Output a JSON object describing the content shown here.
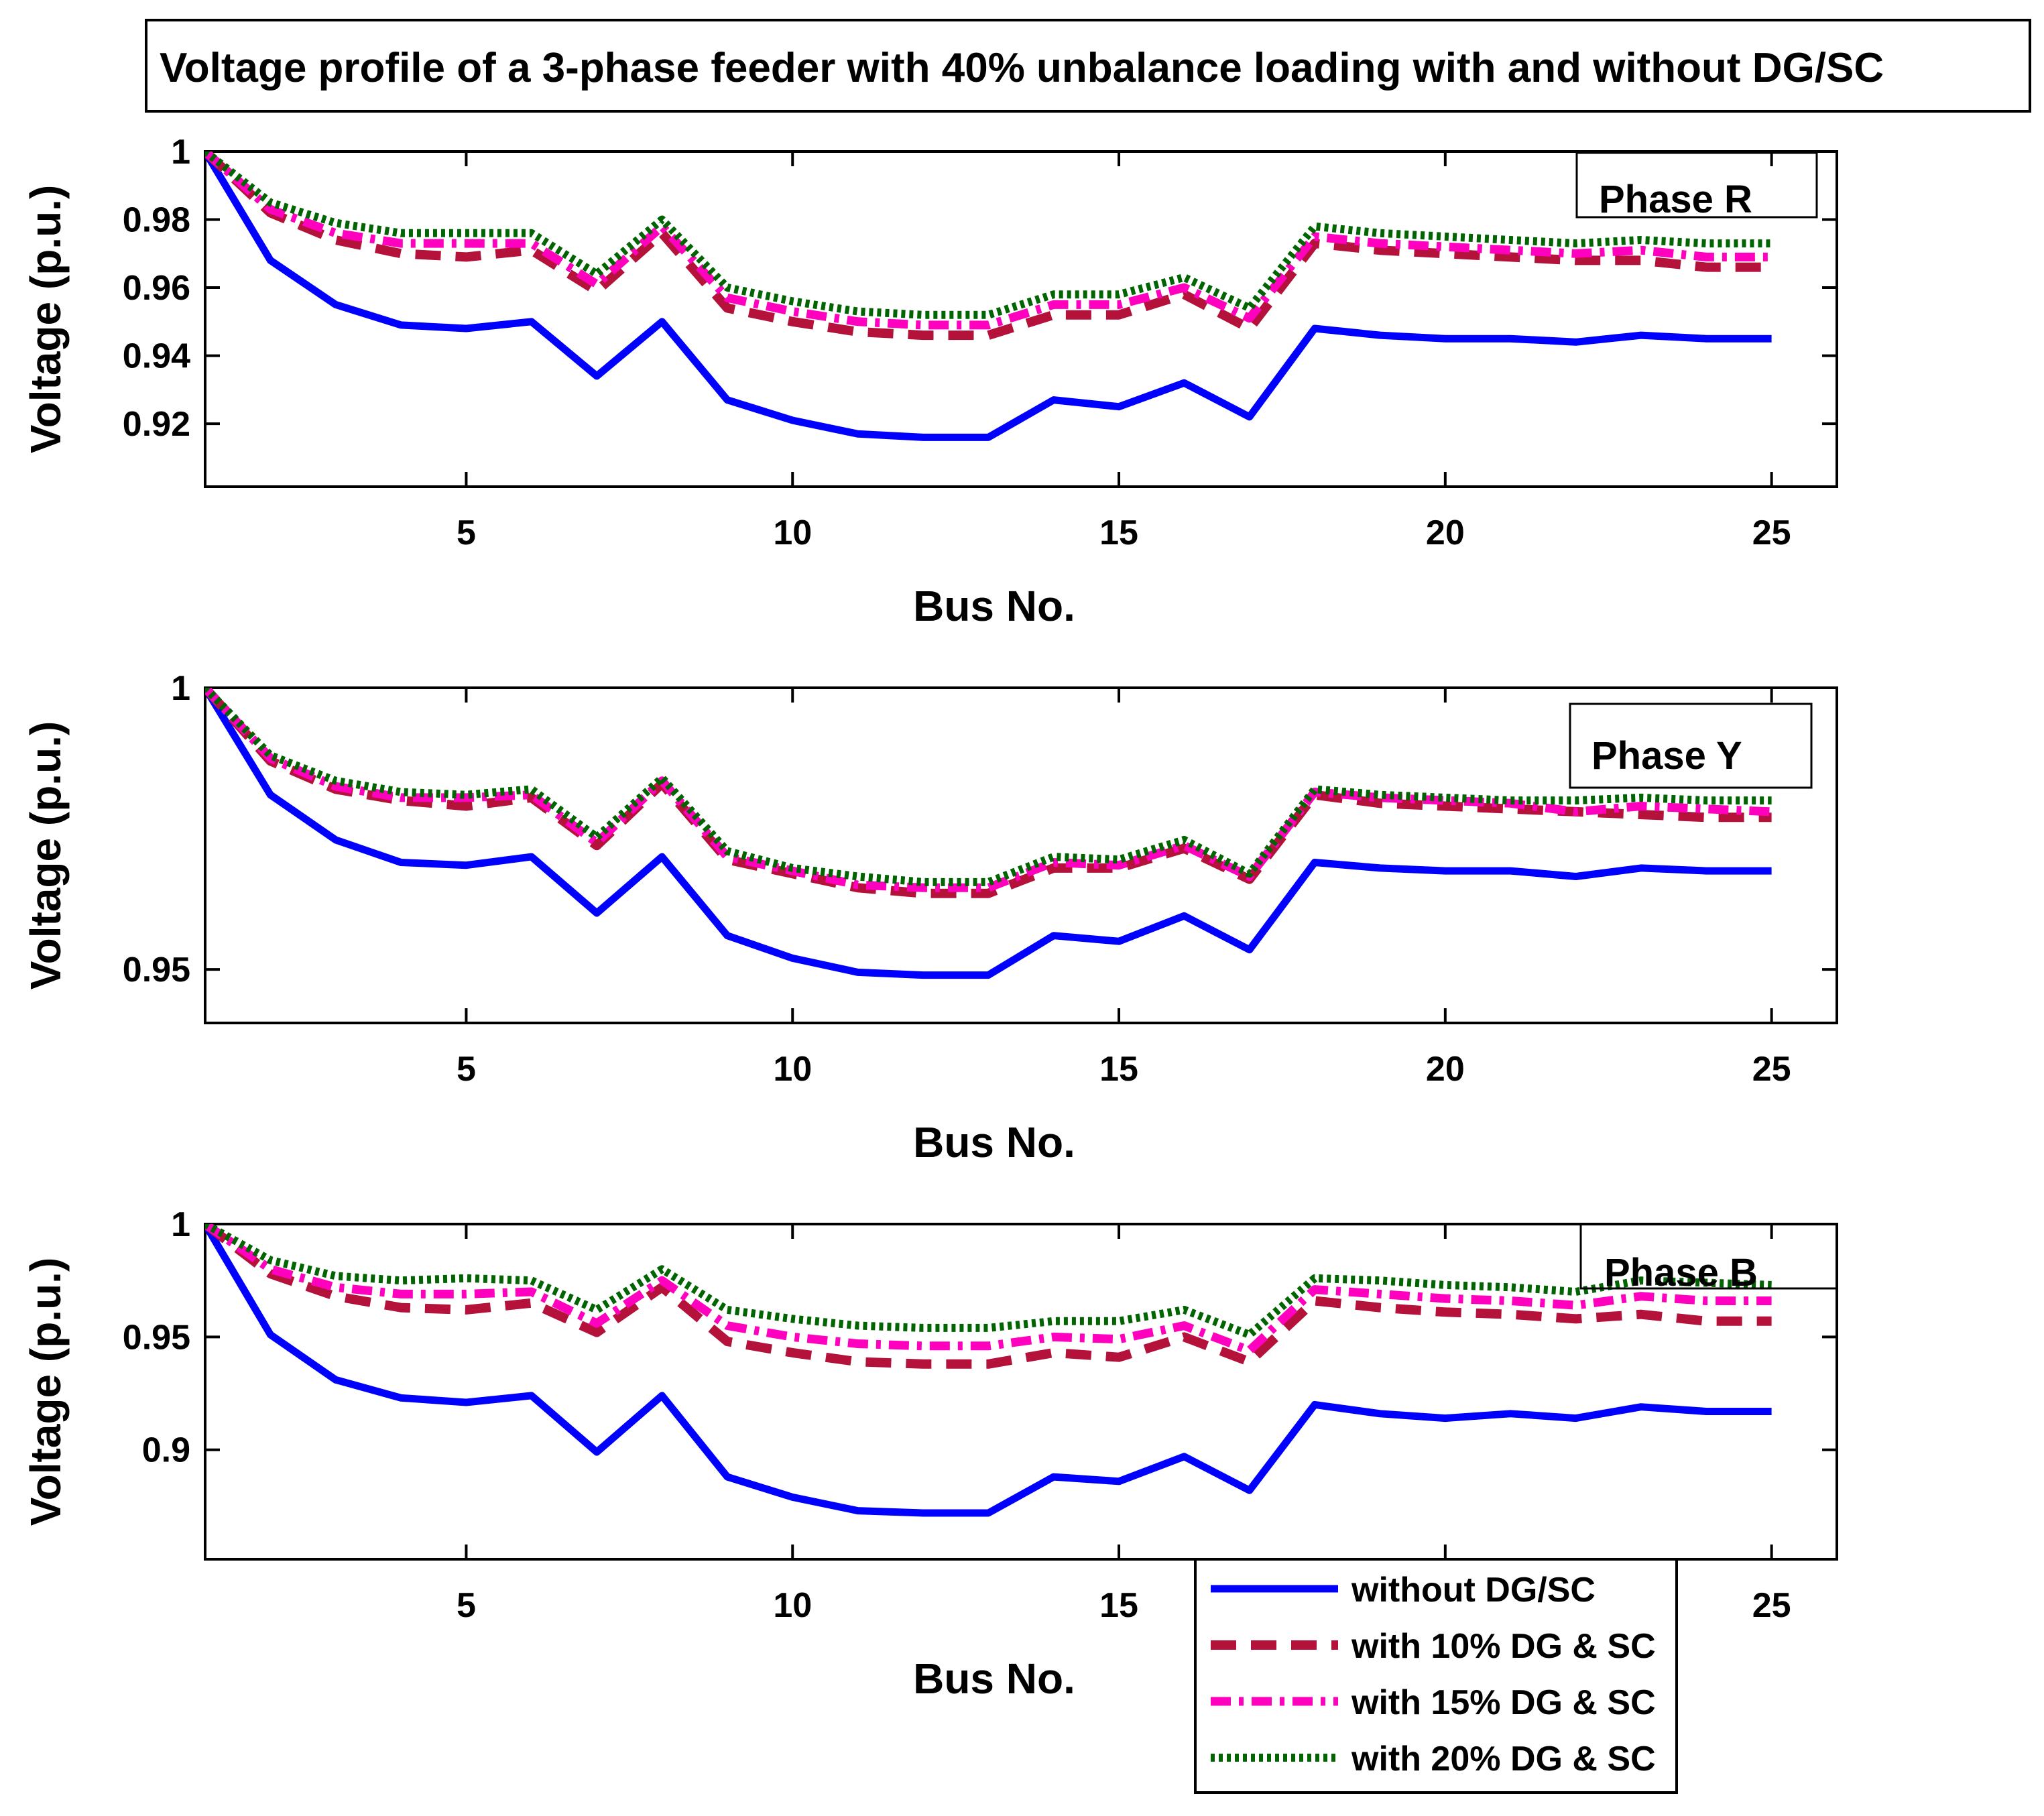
{
  "figure_title": "Voltage profile of a 3-phase feeder with 40% unbalance loading with and without DG/SC",
  "colors": {
    "without": "#0000ff",
    "dg10": "#b5123b",
    "dg15": "#ff00bf",
    "dg20": "#006400"
  },
  "chart_data": [
    {
      "type": "line",
      "title": "Phase R",
      "xlabel": "Bus No.",
      "ylabel": "Voltage (p.u.)",
      "xlim": [
        1,
        26
      ],
      "ylim": [
        0.9015,
        1.0
      ],
      "xticks": [
        5,
        10,
        15,
        20,
        25
      ],
      "yticks": [
        0.92,
        0.94,
        0.96,
        0.98,
        1
      ],
      "ytick_labels": [
        "0.92",
        "0.94",
        "0.96",
        "0.98",
        "1"
      ],
      "x": [
        1,
        2,
        3,
        4,
        5,
        6,
        7,
        8,
        9,
        10,
        11,
        12,
        13,
        14,
        15,
        16,
        17,
        18,
        19,
        20,
        21,
        22,
        23,
        24,
        25
      ],
      "series": [
        {
          "name": "without DG/SC",
          "style": "solid",
          "color_key": "without",
          "values": [
            1.0,
            0.968,
            0.955,
            0.949,
            0.948,
            0.95,
            0.934,
            0.95,
            0.927,
            0.921,
            0.917,
            0.916,
            0.916,
            0.927,
            0.925,
            0.932,
            0.922,
            0.948,
            0.946,
            0.945,
            0.945,
            0.944,
            0.946,
            0.945,
            0.945
          ]
        },
        {
          "name": "with 10% DG & SC",
          "style": "dashed",
          "color_key": "dg10",
          "values": [
            1.0,
            0.982,
            0.974,
            0.97,
            0.969,
            0.971,
            0.959,
            0.976,
            0.954,
            0.95,
            0.947,
            0.946,
            0.946,
            0.952,
            0.952,
            0.958,
            0.948,
            0.973,
            0.971,
            0.97,
            0.969,
            0.968,
            0.968,
            0.966,
            0.966
          ]
        },
        {
          "name": "with 15% DG & SC",
          "style": "dashdot",
          "color_key": "dg15",
          "values": [
            1.0,
            0.983,
            0.976,
            0.973,
            0.973,
            0.973,
            0.961,
            0.978,
            0.957,
            0.953,
            0.95,
            0.949,
            0.949,
            0.955,
            0.955,
            0.96,
            0.951,
            0.975,
            0.973,
            0.972,
            0.971,
            0.97,
            0.971,
            0.969,
            0.969
          ]
        },
        {
          "name": "with 20% DG & SC",
          "style": "dotted",
          "color_key": "dg20",
          "values": [
            1.0,
            0.985,
            0.979,
            0.976,
            0.976,
            0.976,
            0.964,
            0.98,
            0.96,
            0.956,
            0.953,
            0.952,
            0.952,
            0.958,
            0.958,
            0.963,
            0.954,
            0.978,
            0.976,
            0.975,
            0.974,
            0.973,
            0.974,
            0.973,
            0.973
          ]
        }
      ]
    },
    {
      "type": "line",
      "title": "Phase Y",
      "xlabel": "Bus No.",
      "ylabel": "Voltage (p.u.)",
      "xlim": [
        1,
        26
      ],
      "ylim": [
        0.9405,
        1.0
      ],
      "xticks": [
        5,
        10,
        15,
        20,
        25
      ],
      "yticks": [
        0.95,
        1
      ],
      "ytick_labels": [
        "0.95",
        "1"
      ],
      "x": [
        1,
        2,
        3,
        4,
        5,
        6,
        7,
        8,
        9,
        10,
        11,
        12,
        13,
        14,
        15,
        16,
        17,
        18,
        19,
        20,
        21,
        22,
        23,
        24,
        25
      ],
      "series": [
        {
          "name": "without DG/SC",
          "style": "solid",
          "color_key": "without",
          "values": [
            1.0,
            0.981,
            0.973,
            0.969,
            0.9685,
            0.97,
            0.96,
            0.97,
            0.956,
            0.952,
            0.9495,
            0.949,
            0.949,
            0.956,
            0.955,
            0.9595,
            0.9535,
            0.969,
            0.968,
            0.9675,
            0.9675,
            0.9665,
            0.968,
            0.9675,
            0.9675
          ]
        },
        {
          "name": "with 10% DG & SC",
          "style": "dashed",
          "color_key": "dg10",
          "values": [
            1.0,
            0.987,
            0.982,
            0.98,
            0.979,
            0.9805,
            0.972,
            0.983,
            0.9695,
            0.967,
            0.9645,
            0.9635,
            0.9635,
            0.968,
            0.968,
            0.9715,
            0.966,
            0.981,
            0.9795,
            0.979,
            0.9785,
            0.978,
            0.9775,
            0.977,
            0.977
          ]
        },
        {
          "name": "with 15% DG & SC",
          "style": "dashdot",
          "color_key": "dg15",
          "values": [
            1.0,
            0.9875,
            0.9825,
            0.9805,
            0.9805,
            0.981,
            0.9725,
            0.9835,
            0.97,
            0.9675,
            0.965,
            0.9645,
            0.9645,
            0.969,
            0.9685,
            0.972,
            0.9665,
            0.9815,
            0.9805,
            0.98,
            0.9795,
            0.978,
            0.979,
            0.9785,
            0.978
          ]
        },
        {
          "name": "with 20% DG & SC",
          "style": "dotted",
          "color_key": "dg20",
          "values": [
            1.0,
            0.988,
            0.9835,
            0.9815,
            0.981,
            0.982,
            0.9735,
            0.984,
            0.971,
            0.968,
            0.9665,
            0.9655,
            0.9655,
            0.97,
            0.9695,
            0.973,
            0.967,
            0.982,
            0.981,
            0.9805,
            0.98,
            0.98,
            0.9805,
            0.98,
            0.98
          ]
        }
      ]
    },
    {
      "type": "line",
      "title": "Phase B",
      "xlabel": "Bus No.",
      "ylabel": "Voltage (p.u.)",
      "xlim": [
        1,
        26
      ],
      "ylim": [
        0.8515,
        1.0
      ],
      "xticks": [
        5,
        10,
        15,
        20,
        25
      ],
      "yticks": [
        0.9,
        0.95,
        1
      ],
      "ytick_labels": [
        "0.9",
        "0.95",
        "1"
      ],
      "x": [
        1,
        2,
        3,
        4,
        5,
        6,
        7,
        8,
        9,
        10,
        11,
        12,
        13,
        14,
        15,
        16,
        17,
        18,
        19,
        20,
        21,
        22,
        23,
        24,
        25
      ],
      "series": [
        {
          "name": "without DG/SC",
          "style": "solid",
          "color_key": "without",
          "values": [
            1.0,
            0.951,
            0.931,
            0.923,
            0.921,
            0.924,
            0.899,
            0.924,
            0.888,
            0.879,
            0.873,
            0.872,
            0.872,
            0.888,
            0.886,
            0.897,
            0.882,
            0.92,
            0.916,
            0.914,
            0.916,
            0.914,
            0.919,
            0.917,
            0.917
          ]
        },
        {
          "name": "with 10% DG & SC",
          "style": "dashed",
          "color_key": "dg10",
          "values": [
            1.0,
            0.978,
            0.968,
            0.963,
            0.962,
            0.965,
            0.952,
            0.972,
            0.948,
            0.943,
            0.939,
            0.938,
            0.938,
            0.943,
            0.941,
            0.95,
            0.939,
            0.966,
            0.963,
            0.961,
            0.96,
            0.958,
            0.96,
            0.957,
            0.957
          ]
        },
        {
          "name": "with 15% DG & SC",
          "style": "dashdot",
          "color_key": "dg15",
          "values": [
            1.0,
            0.98,
            0.972,
            0.969,
            0.969,
            0.97,
            0.956,
            0.975,
            0.955,
            0.95,
            0.947,
            0.946,
            0.946,
            0.95,
            0.949,
            0.955,
            0.944,
            0.971,
            0.969,
            0.967,
            0.966,
            0.964,
            0.968,
            0.966,
            0.966
          ]
        },
        {
          "name": "with 20% DG & SC",
          "style": "dotted",
          "color_key": "dg20",
          "values": [
            1.0,
            0.984,
            0.977,
            0.975,
            0.976,
            0.975,
            0.962,
            0.98,
            0.962,
            0.958,
            0.955,
            0.954,
            0.954,
            0.957,
            0.957,
            0.962,
            0.951,
            0.976,
            0.975,
            0.973,
            0.972,
            0.97,
            0.975,
            0.974,
            0.973
          ]
        }
      ]
    }
  ],
  "legend": {
    "placement": "bottom-right",
    "entries": [
      {
        "label": "without DG/SC",
        "style": "solid",
        "color_key": "without"
      },
      {
        "label": "with 10% DG & SC",
        "style": "dashed",
        "color_key": "dg10"
      },
      {
        "label": "with 15% DG & SC",
        "style": "dashdot",
        "color_key": "dg15"
      },
      {
        "label": "with 20% DG & SC",
        "style": "dotted",
        "color_key": "dg20"
      }
    ]
  }
}
